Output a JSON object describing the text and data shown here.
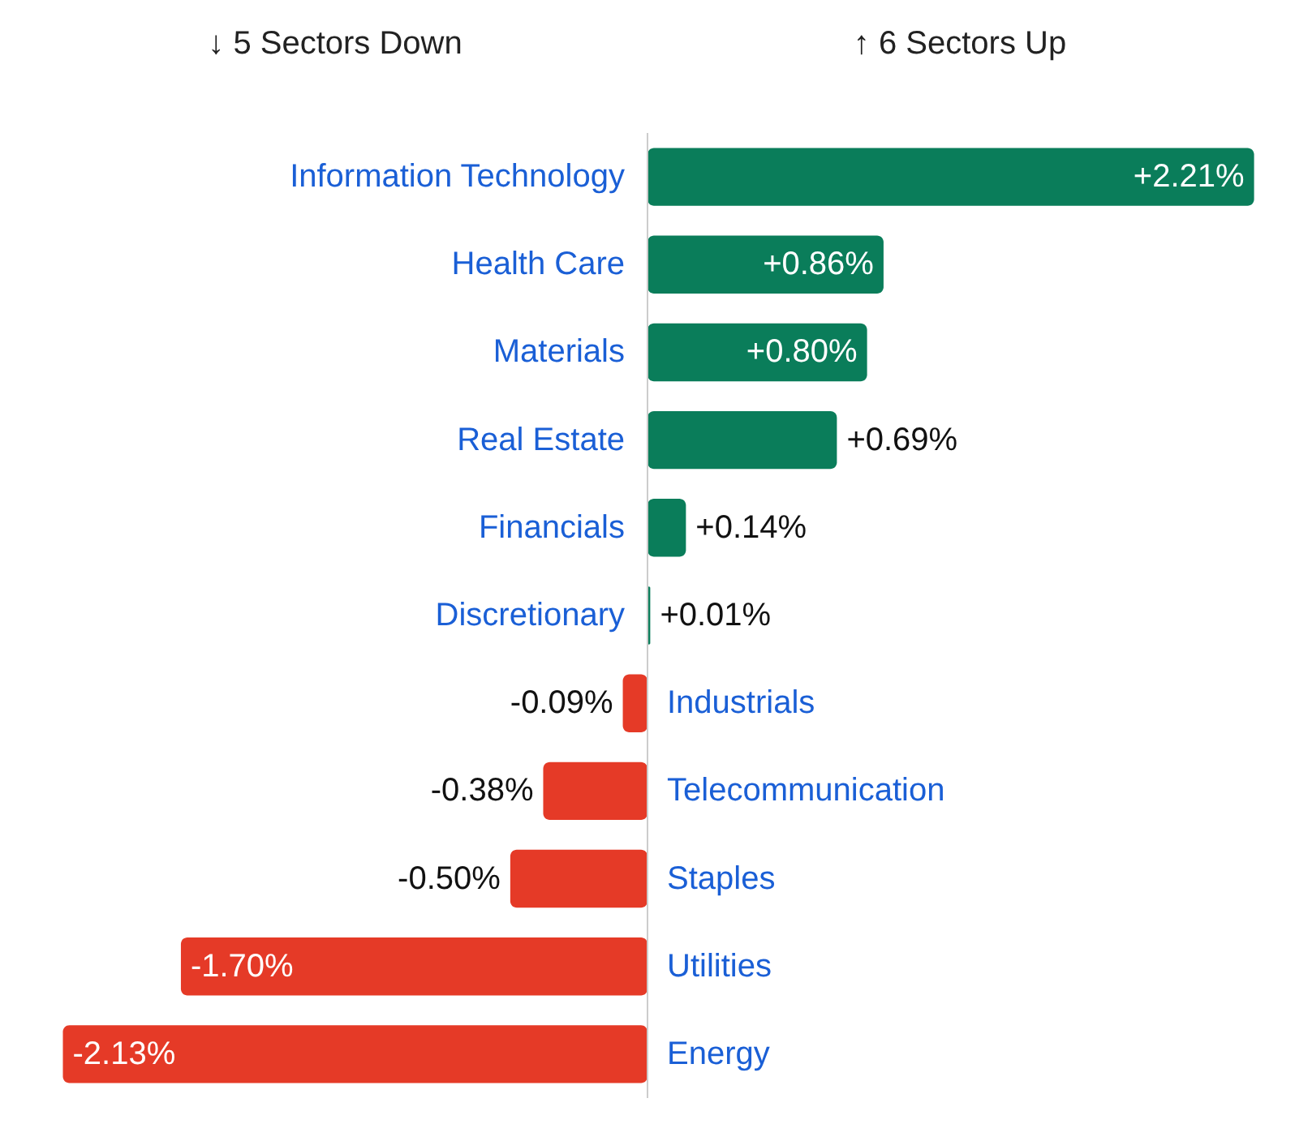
{
  "chart_data": {
    "type": "bar",
    "orientation": "horizontal",
    "annotations": [
      "↓ 5 Sectors Down",
      "↑ 6 Sectors Up"
    ],
    "categories": [
      "Information Technology",
      "Health Care",
      "Materials",
      "Real Estate",
      "Financials",
      "Discretionary",
      "Industrials",
      "Telecommunication",
      "Staples",
      "Utilities",
      "Energy"
    ],
    "values": [
      2.21,
      0.86,
      0.8,
      0.69,
      0.14,
      0.01,
      -0.09,
      -0.38,
      -0.5,
      -1.7,
      -2.13
    ],
    "value_labels": [
      "+2.21%",
      "+0.86%",
      "+0.80%",
      "+0.69%",
      "+0.14%",
      "+0.01%",
      "-0.09%",
      "-0.38%",
      "-0.50%",
      "-1.70%",
      "-2.13%"
    ],
    "colors": [
      "#0a7d5a",
      "#0a7d5a",
      "#0a7d5a",
      "#0a7d5a",
      "#0a7d5a",
      "#0a7d5a",
      "#e53a27",
      "#e53a27",
      "#e53a27",
      "#e53a27",
      "#e53a27"
    ]
  }
}
